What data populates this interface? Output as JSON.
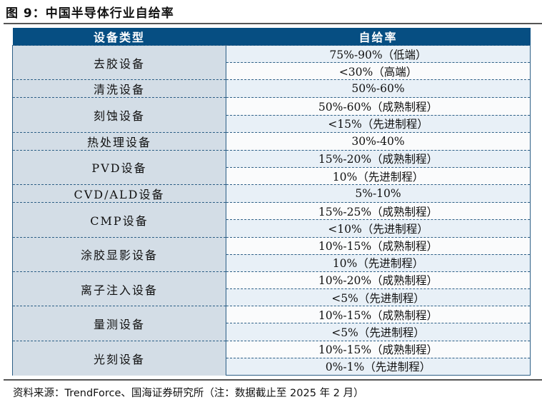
{
  "title": "图 9：中国半导体行业自给率",
  "table": {
    "headers": [
      "设备类型",
      "自给率"
    ],
    "groups": [
      {
        "type": "去胶设备",
        "rates": [
          "75%-90%（低端）",
          "<30%（高端）"
        ]
      },
      {
        "type": "清洗设备",
        "rates": [
          "50%-60%"
        ]
      },
      {
        "type": "刻蚀设备",
        "rates": [
          "50%-60%（成熟制程）",
          "<15%（先进制程）"
        ]
      },
      {
        "type": "热处理设备",
        "rates": [
          "30%-40%"
        ]
      },
      {
        "type": "PVD设备",
        "rates": [
          "15%-20%（成熟制程）",
          "10%（先进制程）"
        ]
      },
      {
        "type": "CVD/ALD设备",
        "rates": [
          "5%-10%"
        ]
      },
      {
        "type": "CMP设备",
        "rates": [
          "15%-25%（成熟制程）",
          "<10%（先进制程）"
        ]
      },
      {
        "type": "涂胶显影设备",
        "rates": [
          "10%-15%（成熟制程）",
          "10%（先进制程）"
        ]
      },
      {
        "type": "离子注入设备",
        "rates": [
          "10%-20%（成熟制程）",
          "<5%（先进制程）"
        ]
      },
      {
        "type": "量测设备",
        "rates": [
          "10%-15%（成熟制程）",
          "<5%（先进制程）"
        ]
      },
      {
        "type": "光刻设备",
        "rates": [
          "10%-15%（成熟制程）",
          "0%-1%（先进制程）"
        ]
      }
    ]
  },
  "source": "资料来源：TrendForce、国海证券研究所（注：数据截止至 2025 年 2 月）",
  "colors": {
    "header_bg": "#064e82",
    "category_bg": "#d3dde6",
    "row_tint": "#e8f0f7"
  }
}
